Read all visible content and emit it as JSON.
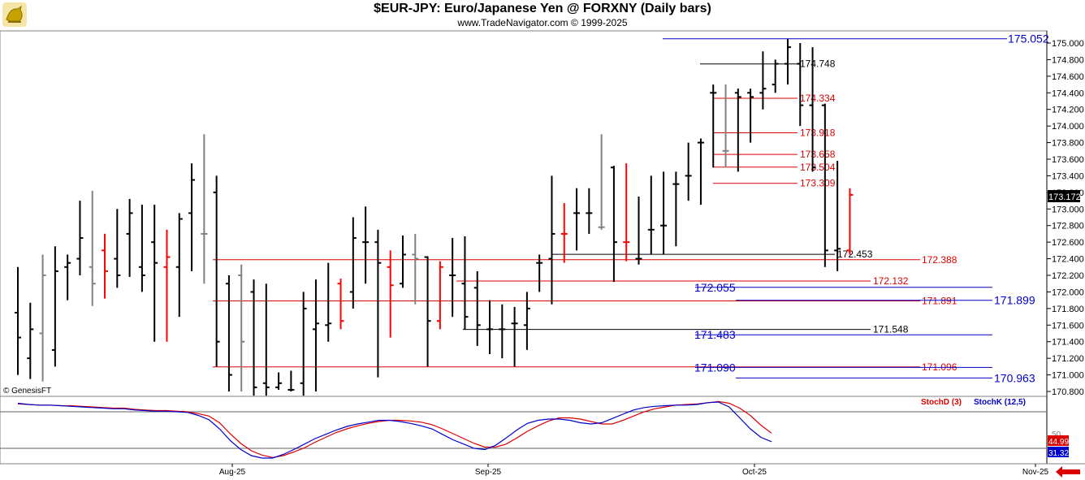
{
  "header": {
    "title": "$EUR-JPY:  Euro/Japanese Yen @ FORXNY  (Daily bars)",
    "subtitle": "www.TradeNavigator.com © 1999-2025",
    "watermark": "© GenesisFT"
  },
  "colors": {
    "up": "#000000",
    "down": "#ff0000",
    "neutral": "#808080",
    "blue": "#0000cc",
    "red": "#dd0000",
    "stochD": "#dd0000",
    "stochK": "#0000cc"
  },
  "chart_data": [
    {
      "type": "ohlc",
      "y_axis": {
        "ylim": [
          170.75,
          175.1
        ],
        "ticks": [
          "175.000",
          "174.800",
          "174.600",
          "174.400",
          "174.200",
          "174.000",
          "173.800",
          "173.600",
          "173.400",
          "173.200",
          "173.000",
          "172.800",
          "172.600",
          "172.400",
          "172.200",
          "172.000",
          "171.800",
          "171.600",
          "171.400",
          "171.200",
          "171.000",
          "170.800"
        ],
        "last_price": "173.172"
      },
      "x_axis": {
        "labels": [
          "Aug-25",
          "Sep-25",
          "Oct-25",
          "Nov-25"
        ]
      },
      "bars": [
        {
          "o": 171.75,
          "h": 172.3,
          "l": 171.0,
          "c": 171.45,
          "col": "up"
        },
        {
          "o": 171.2,
          "h": 171.87,
          "l": 170.95,
          "c": 171.55,
          "col": "up"
        },
        {
          "o": 171.5,
          "h": 172.45,
          "l": 170.92,
          "c": 172.2,
          "col": "neutral"
        },
        {
          "o": 171.3,
          "h": 172.55,
          "l": 171.1,
          "c": 172.25,
          "col": "up"
        },
        {
          "o": 172.3,
          "h": 172.45,
          "l": 171.9,
          "c": 172.35,
          "col": "up"
        },
        {
          "o": 172.4,
          "h": 173.1,
          "l": 172.2,
          "c": 172.65,
          "col": "up"
        },
        {
          "o": 172.3,
          "h": 173.22,
          "l": 171.83,
          "c": 172.1,
          "col": "neutral"
        },
        {
          "o": 172.5,
          "h": 172.7,
          "l": 171.92,
          "c": 172.25,
          "col": "down"
        },
        {
          "o": 172.4,
          "h": 173.0,
          "l": 172.05,
          "c": 172.2,
          "col": "up"
        },
        {
          "o": 172.7,
          "h": 173.12,
          "l": 172.18,
          "c": 172.95,
          "col": "up"
        },
        {
          "o": 172.3,
          "h": 173.05,
          "l": 172.0,
          "c": 172.2,
          "col": "up"
        },
        {
          "o": 172.6,
          "h": 173.05,
          "l": 171.4,
          "c": 172.35,
          "col": "up"
        },
        {
          "o": 172.3,
          "h": 172.75,
          "l": 171.4,
          "c": 172.42,
          "col": "down"
        },
        {
          "o": 172.3,
          "h": 172.95,
          "l": 171.7,
          "c": 172.88,
          "col": "up"
        },
        {
          "o": 172.95,
          "h": 173.55,
          "l": 172.25,
          "c": 173.35,
          "col": "up"
        },
        {
          "o": 172.7,
          "h": 173.9,
          "l": 172.1,
          "c": 172.7,
          "col": "neutral"
        },
        {
          "o": 173.2,
          "h": 173.4,
          "l": 171.1,
          "c": 171.4,
          "col": "up"
        },
        {
          "o": 172.1,
          "h": 172.2,
          "l": 170.8,
          "c": 171.0,
          "col": "up"
        },
        {
          "o": 172.2,
          "h": 172.33,
          "l": 170.8,
          "c": 171.4,
          "col": "neutral"
        },
        {
          "o": 172.0,
          "h": 172.15,
          "l": 170.75,
          "c": 170.85,
          "col": "up"
        },
        {
          "o": 170.9,
          "h": 172.1,
          "l": 170.75,
          "c": 170.85,
          "col": "up"
        },
        {
          "o": 170.85,
          "h": 171.03,
          "l": 170.82,
          "c": 170.9,
          "col": "up"
        },
        {
          "o": 170.82,
          "h": 171.05,
          "l": 170.8,
          "c": 170.82,
          "col": "up"
        },
        {
          "o": 170.9,
          "h": 172.0,
          "l": 170.75,
          "c": 171.8,
          "col": "up"
        },
        {
          "o": 171.55,
          "h": 172.15,
          "l": 170.8,
          "c": 171.62,
          "col": "up"
        },
        {
          "o": 171.6,
          "h": 172.35,
          "l": 171.4,
          "c": 171.62,
          "col": "up"
        },
        {
          "o": 172.1,
          "h": 172.16,
          "l": 171.55,
          "c": 171.65,
          "col": "down"
        },
        {
          "o": 172.0,
          "h": 172.9,
          "l": 171.8,
          "c": 172.65,
          "col": "up"
        },
        {
          "o": 172.6,
          "h": 173.03,
          "l": 172.1,
          "c": 172.6,
          "col": "up"
        },
        {
          "o": 172.6,
          "h": 172.75,
          "l": 170.97,
          "c": 172.35,
          "col": "up"
        },
        {
          "o": 172.3,
          "h": 172.5,
          "l": 171.45,
          "c": 172.08,
          "col": "down"
        },
        {
          "o": 172.1,
          "h": 172.68,
          "l": 172.05,
          "c": 172.45,
          "col": "up"
        },
        {
          "o": 172.45,
          "h": 172.7,
          "l": 171.85,
          "c": 172.4,
          "col": "neutral"
        },
        {
          "o": 172.42,
          "h": 172.43,
          "l": 171.1,
          "c": 171.65,
          "col": "up"
        },
        {
          "o": 171.65,
          "h": 172.37,
          "l": 171.55,
          "c": 172.3,
          "col": "down"
        },
        {
          "o": 172.2,
          "h": 172.65,
          "l": 171.7,
          "c": 172.2,
          "col": "up"
        },
        {
          "o": 172.1,
          "h": 172.67,
          "l": 171.55,
          "c": 171.7,
          "col": "up"
        },
        {
          "o": 172.05,
          "h": 172.25,
          "l": 171.35,
          "c": 171.6,
          "col": "up"
        },
        {
          "o": 171.55,
          "h": 171.9,
          "l": 171.25,
          "c": 171.55,
          "col": "up"
        },
        {
          "o": 171.55,
          "h": 171.85,
          "l": 171.2,
          "c": 171.55,
          "col": "up"
        },
        {
          "o": 171.62,
          "h": 171.82,
          "l": 171.1,
          "c": 171.62,
          "col": "up"
        },
        {
          "o": 171.6,
          "h": 172.0,
          "l": 171.3,
          "c": 171.8,
          "col": "up"
        },
        {
          "o": 172.35,
          "h": 172.45,
          "l": 172.0,
          "c": 172.35,
          "col": "up"
        },
        {
          "o": 172.4,
          "h": 173.4,
          "l": 171.85,
          "c": 172.7,
          "col": "up"
        },
        {
          "o": 172.7,
          "h": 173.07,
          "l": 172.35,
          "c": 172.7,
          "col": "down"
        },
        {
          "o": 172.95,
          "h": 173.25,
          "l": 172.5,
          "c": 172.95,
          "col": "up"
        },
        {
          "o": 172.95,
          "h": 173.25,
          "l": 172.7,
          "c": 172.95,
          "col": "up"
        },
        {
          "o": 172.78,
          "h": 173.9,
          "l": 172.75,
          "c": 172.78,
          "col": "neutral"
        },
        {
          "o": 173.5,
          "h": 173.52,
          "l": 172.12,
          "c": 172.6,
          "col": "up"
        },
        {
          "o": 172.6,
          "h": 173.55,
          "l": 172.37,
          "c": 172.6,
          "col": "down"
        },
        {
          "o": 172.4,
          "h": 173.15,
          "l": 172.33,
          "c": 172.4,
          "col": "up"
        },
        {
          "o": 172.75,
          "h": 173.4,
          "l": 172.45,
          "c": 172.75,
          "col": "up"
        },
        {
          "o": 172.8,
          "h": 173.45,
          "l": 172.45,
          "c": 172.8,
          "col": "up"
        },
        {
          "o": 173.3,
          "h": 173.45,
          "l": 172.55,
          "c": 173.3,
          "col": "up"
        },
        {
          "o": 173.4,
          "h": 173.8,
          "l": 173.1,
          "c": 173.4,
          "col": "up"
        },
        {
          "o": 173.8,
          "h": 173.85,
          "l": 173.05,
          "c": 173.8,
          "col": "up"
        },
        {
          "o": 174.4,
          "h": 174.5,
          "l": 173.5,
          "c": 174.4,
          "col": "up"
        },
        {
          "o": 173.7,
          "h": 174.5,
          "l": 173.5,
          "c": 173.7,
          "col": "neutral"
        },
        {
          "o": 174.4,
          "h": 174.45,
          "l": 173.45,
          "c": 174.35,
          "col": "up"
        },
        {
          "o": 174.4,
          "h": 174.45,
          "l": 173.8,
          "c": 174.35,
          "col": "up"
        },
        {
          "o": 174.4,
          "h": 174.9,
          "l": 174.2,
          "c": 174.45,
          "col": "up"
        },
        {
          "o": 174.5,
          "h": 174.8,
          "l": 174.4,
          "c": 174.75,
          "col": "up"
        },
        {
          "o": 174.75,
          "h": 175.05,
          "l": 174.5,
          "c": 174.95,
          "col": "up"
        },
        {
          "o": 174.75,
          "h": 175.0,
          "l": 174.0,
          "c": 174.25,
          "col": "up"
        },
        {
          "o": 174.25,
          "h": 174.95,
          "l": 173.45,
          "c": 173.5,
          "col": "up"
        },
        {
          "o": 174.25,
          "h": 174.27,
          "l": 172.3,
          "c": 172.5,
          "col": "up"
        },
        {
          "o": 172.5,
          "h": 173.58,
          "l": 172.25,
          "c": 172.52,
          "col": "up"
        },
        {
          "o": 172.5,
          "h": 173.25,
          "l": 172.45,
          "c": 173.17,
          "col": "down"
        }
      ],
      "levels": [
        {
          "value": "175.052",
          "color": "blue",
          "size": "large"
        },
        {
          "value": "174.748",
          "color": "black",
          "size": "small"
        },
        {
          "value": "174.334",
          "color": "red",
          "size": "small"
        },
        {
          "value": "173.918",
          "color": "red",
          "size": "small"
        },
        {
          "value": "173.658",
          "color": "red",
          "size": "small"
        },
        {
          "value": "173.504",
          "color": "red",
          "size": "small"
        },
        {
          "value": "173.309",
          "color": "red",
          "size": "small"
        },
        {
          "value": "172.453",
          "color": "black",
          "size": "small"
        },
        {
          "value": "172.388",
          "color": "red",
          "size": "small"
        },
        {
          "value": "172.132",
          "color": "red",
          "size": "small"
        },
        {
          "value": "172.055",
          "color": "blue",
          "size": "large"
        },
        {
          "value": "171.891",
          "color": "red",
          "size": "small"
        },
        {
          "value": "171.899",
          "color": "blue",
          "size": "large"
        },
        {
          "value": "171.548",
          "color": "black",
          "size": "small"
        },
        {
          "value": "171.483",
          "color": "blue",
          "size": "large"
        },
        {
          "value": "171.096",
          "color": "red",
          "size": "small"
        },
        {
          "value": "171.090",
          "color": "blue",
          "size": "large"
        },
        {
          "value": "170.963",
          "color": "blue",
          "size": "large"
        }
      ]
    },
    {
      "type": "line",
      "title_d": "StochD (3)",
      "title_k": "StochK (12,5)",
      "ylim": [
        0,
        100
      ],
      "last_d": "44.99",
      "last_k": "31.32",
      "tick_50": "50",
      "series": [
        {
          "name": "StochD (3)",
          "color": "red",
          "values": [
            93,
            92,
            91,
            91,
            90,
            90,
            89,
            88,
            87,
            86,
            86,
            84,
            83,
            82,
            82,
            81,
            80,
            77,
            73,
            62,
            44,
            28,
            16,
            9,
            5,
            8,
            14,
            21,
            30,
            38,
            46,
            52,
            57,
            61,
            64,
            66,
            66,
            65,
            63,
            59,
            52,
            44,
            36,
            28,
            22,
            22,
            27,
            37,
            48,
            57,
            65,
            70,
            70,
            68,
            64,
            60,
            60,
            66,
            73,
            80,
            85,
            88,
            91,
            92,
            93,
            95,
            97,
            94,
            86,
            74,
            58,
            45
          ]
        },
        {
          "name": "StochK (12,5)",
          "color": "blue",
          "values": [
            94,
            92,
            91,
            91,
            90,
            89,
            88,
            87,
            86,
            85,
            85,
            83,
            82,
            81,
            81,
            80,
            79,
            74,
            67,
            52,
            33,
            18,
            8,
            4,
            4,
            10,
            18,
            27,
            36,
            43,
            50,
            56,
            60,
            63,
            66,
            66,
            64,
            61,
            57,
            52,
            43,
            34,
            27,
            20,
            18,
            25,
            37,
            50,
            61,
            66,
            68,
            68,
            66,
            62,
            60,
            62,
            69,
            76,
            83,
            87,
            89,
            90,
            91,
            91,
            92,
            95,
            96,
            88,
            70,
            52,
            38,
            31
          ]
        }
      ]
    }
  ]
}
